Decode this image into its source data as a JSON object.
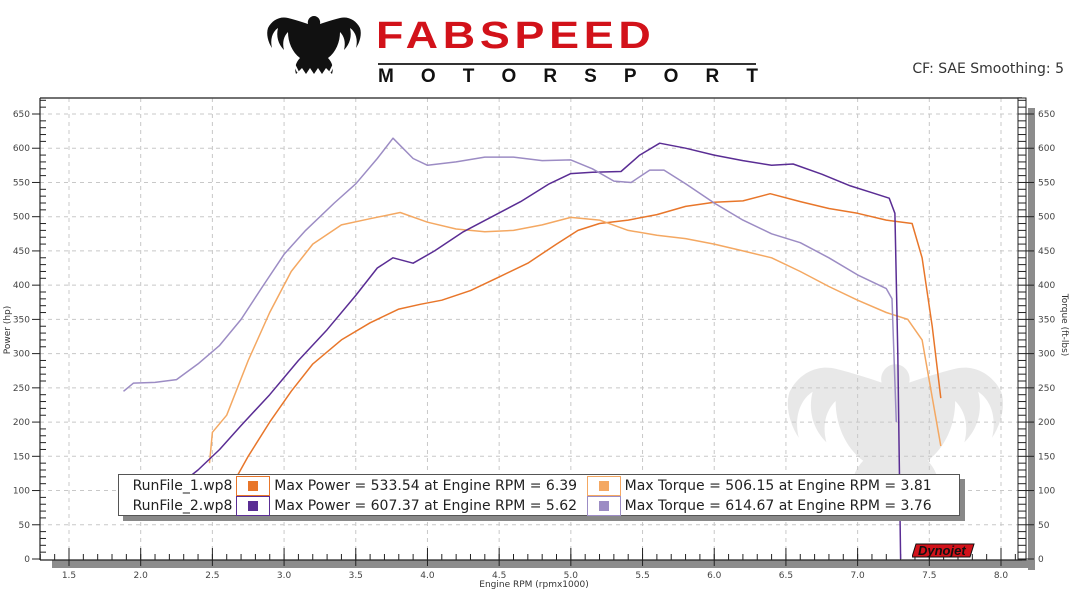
{
  "header": {
    "brand_name": "FABSPEED",
    "brand_sub_letters": [
      "M",
      "O",
      "T",
      "O",
      "R",
      "S",
      "P",
      "O",
      "R",
      "T"
    ],
    "brand_sub": "MOTORSPORT",
    "correction_info": "CF: SAE Smoothing: 5"
  },
  "colors": {
    "brand_red": "#d2121a",
    "run1_power": "#e8762a",
    "run1_torque": "#f4a862",
    "run2_power": "#5a2d94",
    "run2_torque": "#9c8cc4",
    "grid": "#c8c8c8",
    "axis_shadow": "#8c8c8c"
  },
  "legend": {
    "rows": [
      {
        "file": "RunFile_1.wp8",
        "power_text": "Max Power = 533.54 at Engine RPM = 6.39",
        "torque_text": "Max Torque = 506.15 at Engine RPM = 3.81",
        "power_color": "#e8762a",
        "torque_color": "#f4a862"
      },
      {
        "file": "RunFile_2.wp8",
        "power_text": "Max Power = 607.37 at Engine RPM = 5.62",
        "torque_text": "Max Torque = 614.67 at Engine RPM = 3.76",
        "power_color": "#5a2d94",
        "torque_color": "#9c8cc4"
      }
    ]
  },
  "watermark": {
    "dynojet_label": "Dynojet"
  },
  "chart_data": {
    "type": "line",
    "title": "",
    "subtitle": "CF: SAE Smoothing: 5",
    "xlabel": "Engine RPM (rpmx1000)",
    "ylabel": "Power (hp)",
    "y2label": "Torque (ft-lbs)",
    "xlim": [
      1.3,
      8.15
    ],
    "ylim": [
      0,
      680
    ],
    "y2lim": [
      0,
      680
    ],
    "x_ticks": [
      1.5,
      2.0,
      2.5,
      3.0,
      3.5,
      4.0,
      4.5,
      5.0,
      5.5,
      6.0,
      6.5,
      7.0,
      7.5,
      8.0
    ],
    "x_tick_labels": [
      "1.5",
      "2.0",
      "2.5",
      "3.0",
      "3.5",
      "4.0",
      "4.5",
      "5.0",
      "5.5",
      "6.0",
      "6.5",
      "7.0",
      "7.5",
      "8.0"
    ],
    "y_ticks": [
      0,
      50,
      100,
      150,
      200,
      250,
      300,
      350,
      400,
      450,
      500,
      550,
      600,
      650
    ],
    "y_tick_labels": [
      "0",
      "50",
      "100",
      "150",
      "200",
      "250",
      "300",
      "350",
      "400",
      "450",
      "500",
      "550",
      "600",
      "650"
    ],
    "grid": true,
    "legend_position": "bottom-inside",
    "series": [
      {
        "name": "RunFile_1.wp8 Power",
        "axis": "left",
        "color": "#e8762a",
        "points": [
          [
            2.63,
            105
          ],
          [
            2.75,
            150
          ],
          [
            2.9,
            200
          ],
          [
            3.05,
            245
          ],
          [
            3.2,
            285
          ],
          [
            3.4,
            320
          ],
          [
            3.6,
            345
          ],
          [
            3.8,
            365
          ],
          [
            3.95,
            372
          ],
          [
            4.1,
            378
          ],
          [
            4.3,
            392
          ],
          [
            4.5,
            412
          ],
          [
            4.7,
            432
          ],
          [
            4.9,
            460
          ],
          [
            5.05,
            480
          ],
          [
            5.2,
            490
          ],
          [
            5.4,
            495
          ],
          [
            5.6,
            503
          ],
          [
            5.8,
            515
          ],
          [
            6.0,
            521
          ],
          [
            6.2,
            523
          ],
          [
            6.39,
            533.54
          ],
          [
            6.6,
            522
          ],
          [
            6.8,
            512
          ],
          [
            7.0,
            505
          ],
          [
            7.2,
            495
          ],
          [
            7.38,
            490
          ],
          [
            7.45,
            440
          ],
          [
            7.52,
            340
          ],
          [
            7.58,
            235
          ]
        ]
      },
      {
        "name": "RunFile_1.wp8 Torque",
        "axis": "right",
        "color": "#f4a862",
        "points": [
          [
            2.48,
            140
          ],
          [
            2.5,
            185
          ],
          [
            2.6,
            210
          ],
          [
            2.75,
            290
          ],
          [
            2.9,
            360
          ],
          [
            3.05,
            420
          ],
          [
            3.2,
            460
          ],
          [
            3.4,
            488
          ],
          [
            3.6,
            497
          ],
          [
            3.81,
            506.15
          ],
          [
            4.0,
            492
          ],
          [
            4.2,
            482
          ],
          [
            4.4,
            478
          ],
          [
            4.6,
            480
          ],
          [
            4.8,
            488
          ],
          [
            5.0,
            499
          ],
          [
            5.2,
            495
          ],
          [
            5.4,
            480
          ],
          [
            5.6,
            473
          ],
          [
            5.8,
            468
          ],
          [
            6.0,
            460
          ],
          [
            6.2,
            450
          ],
          [
            6.4,
            440
          ],
          [
            6.6,
            420
          ],
          [
            6.8,
            398
          ],
          [
            7.0,
            378
          ],
          [
            7.2,
            360
          ],
          [
            7.35,
            350
          ],
          [
            7.45,
            320
          ],
          [
            7.58,
            165
          ]
        ]
      },
      {
        "name": "RunFile_2.wp8 Power",
        "axis": "left",
        "color": "#5a2d94",
        "points": [
          [
            2.28,
            110
          ],
          [
            2.4,
            130
          ],
          [
            2.55,
            160
          ],
          [
            2.7,
            195
          ],
          [
            2.9,
            240
          ],
          [
            3.1,
            290
          ],
          [
            3.3,
            335
          ],
          [
            3.5,
            385
          ],
          [
            3.65,
            425
          ],
          [
            3.76,
            440
          ],
          [
            3.9,
            432
          ],
          [
            4.05,
            450
          ],
          [
            4.25,
            478
          ],
          [
            4.45,
            500
          ],
          [
            4.65,
            522
          ],
          [
            4.85,
            548
          ],
          [
            5.0,
            563
          ],
          [
            5.15,
            565
          ],
          [
            5.35,
            566
          ],
          [
            5.48,
            590
          ],
          [
            5.62,
            607.37
          ],
          [
            5.8,
            600
          ],
          [
            6.0,
            590
          ],
          [
            6.2,
            582
          ],
          [
            6.4,
            575
          ],
          [
            6.55,
            577
          ],
          [
            6.75,
            562
          ],
          [
            6.95,
            545
          ],
          [
            7.1,
            535
          ],
          [
            7.22,
            527
          ],
          [
            7.26,
            505
          ],
          [
            7.28,
            300
          ],
          [
            7.3,
            0
          ]
        ]
      },
      {
        "name": "RunFile_2.wp8 Torque",
        "axis": "right",
        "color": "#9c8cc4",
        "points": [
          [
            1.88,
            245
          ],
          [
            1.95,
            257
          ],
          [
            2.1,
            258
          ],
          [
            2.25,
            262
          ],
          [
            2.4,
            285
          ],
          [
            2.55,
            312
          ],
          [
            2.7,
            350
          ],
          [
            2.85,
            398
          ],
          [
            3.0,
            445
          ],
          [
            3.15,
            480
          ],
          [
            3.35,
            520
          ],
          [
            3.5,
            548
          ],
          [
            3.65,
            585
          ],
          [
            3.76,
            614.67
          ],
          [
            3.9,
            585
          ],
          [
            4.0,
            575
          ],
          [
            4.2,
            580
          ],
          [
            4.4,
            587
          ],
          [
            4.6,
            587
          ],
          [
            4.8,
            582
          ],
          [
            5.0,
            583
          ],
          [
            5.15,
            570
          ],
          [
            5.3,
            552
          ],
          [
            5.42,
            550
          ],
          [
            5.55,
            568
          ],
          [
            5.65,
            568
          ],
          [
            5.8,
            548
          ],
          [
            6.0,
            520
          ],
          [
            6.2,
            495
          ],
          [
            6.4,
            475
          ],
          [
            6.6,
            462
          ],
          [
            6.8,
            440
          ],
          [
            7.0,
            415
          ],
          [
            7.2,
            395
          ],
          [
            7.24,
            380
          ],
          [
            7.27,
            200
          ]
        ]
      }
    ],
    "annotations": [
      {
        "text": "Max Power = 533.54 at Engine RPM = 6.39",
        "series": "RunFile_1.wp8"
      },
      {
        "text": "Max Torque = 506.15 at Engine RPM = 3.81",
        "series": "RunFile_1.wp8"
      },
      {
        "text": "Max Power = 607.37 at Engine RPM = 5.62",
        "series": "RunFile_2.wp8"
      },
      {
        "text": "Max Torque = 614.67 at Engine RPM = 3.76",
        "series": "RunFile_2.wp8"
      }
    ]
  }
}
